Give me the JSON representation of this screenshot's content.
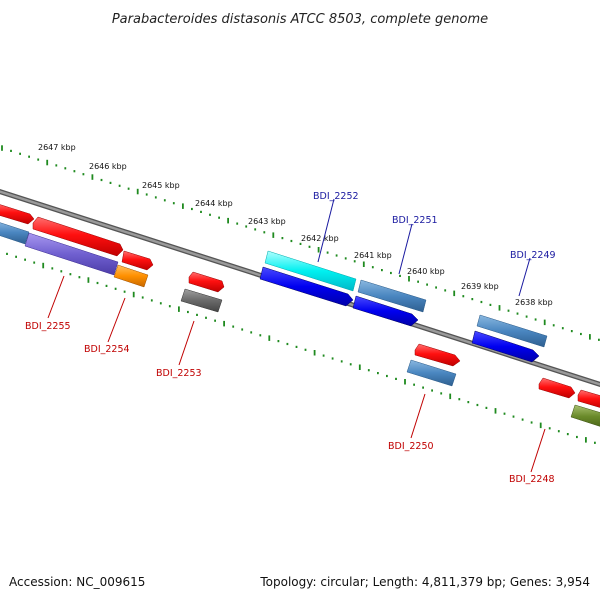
{
  "title": "Parabacteroides distasonis ATCC 8503, complete genome",
  "footer": {
    "accession": "Accession: NC_009615",
    "summary": "Topology: circular; Length: 4,811,379 bp; Genes: 3,954"
  },
  "colors": {
    "backbone": "#808080",
    "ticks": "#1f8a1f",
    "label_top": "#1a1aa0",
    "label_bottom": "#c00000"
  },
  "kbp_labels": [
    {
      "text": "2647 kbp",
      "pos": 2647
    },
    {
      "text": "2646 kbp",
      "pos": 2646
    },
    {
      "text": "2645 kbp",
      "pos": 2645
    },
    {
      "text": "2644 kbp",
      "pos": 2644
    },
    {
      "text": "2643 kbp",
      "pos": 2643
    },
    {
      "text": "2642 kbp",
      "pos": 2642
    },
    {
      "text": "2641 kbp",
      "pos": 2641
    },
    {
      "text": "2640 kbp",
      "pos": 2640
    },
    {
      "text": "2639 kbp",
      "pos": 2639
    },
    {
      "text": "2638 kbp",
      "pos": 2638
    }
  ],
  "gene_labels_top": [
    "BDI_2252",
    "BDI_2251",
    "BDI_2249"
  ],
  "gene_labels_bottom": [
    "BDI_2255",
    "BDI_2254",
    "BDI_2253",
    "BDI_2250",
    "BDI_2248"
  ]
}
